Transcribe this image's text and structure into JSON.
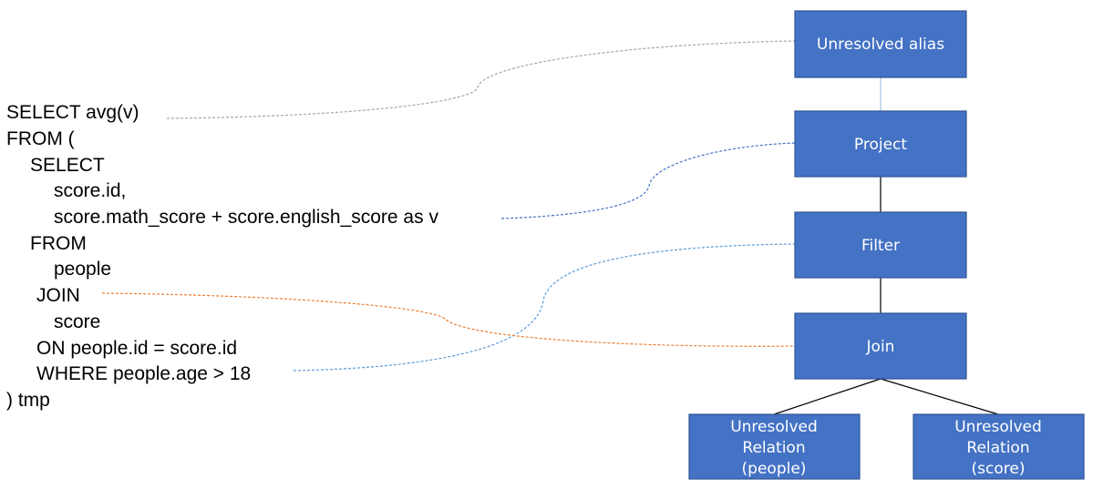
{
  "sql": {
    "lines": [
      "SELECT avg(v)",
      "FROM (",
      "SELECT",
      "score.id,",
      "score.math_score + score.english_score as v",
      "FROM",
      "people",
      "JOIN",
      "score",
      "ON people.id = score.id",
      "WHERE people.age > 18",
      ") tmp"
    ]
  },
  "tree": {
    "unresolved_alias": [
      "Unresolved alias"
    ],
    "project": [
      "Project"
    ],
    "filter": [
      "Filter"
    ],
    "join": [
      "Join"
    ],
    "relation_people": [
      "Unresolved",
      "Relation",
      "(people)"
    ],
    "relation_score": [
      "Unresolved",
      "Relation",
      "(score)"
    ]
  },
  "colors": {
    "node_fill": "#4472c4",
    "node_border": "#2f5597",
    "node_text": "#ffffff",
    "tree_edge": "#000000",
    "alias_edge": "#9dc3e6",
    "link_select": "#a6a6a6",
    "link_project": "#4472c4",
    "link_filter": "#5b9bd5",
    "link_join": "#ed7d31"
  }
}
